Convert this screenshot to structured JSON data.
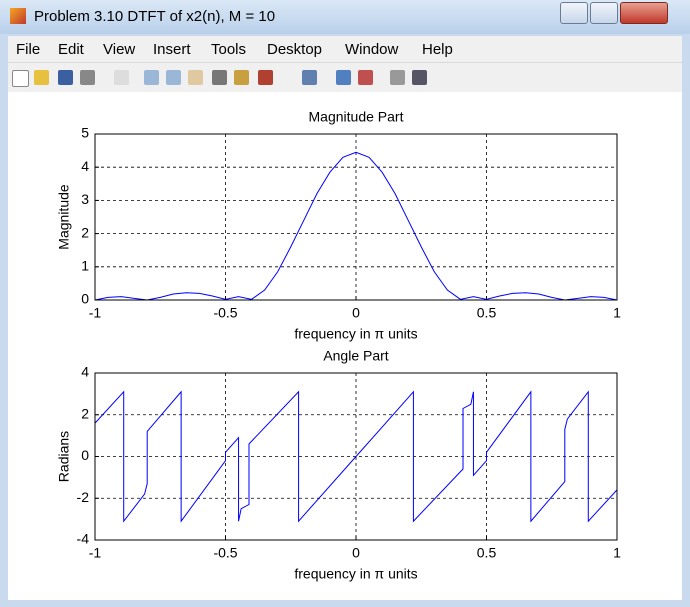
{
  "window": {
    "title": "Problem 3.10 DTFT of x2(n), M = 10"
  },
  "menu": [
    "File",
    "Edit",
    "View",
    "Insert",
    "Tools",
    "Desktop",
    "Window",
    "Help"
  ],
  "chart_data": [
    {
      "type": "line",
      "title": "Magnitude Part",
      "x_label": "frequency in π units",
      "y_label": "Magnitude",
      "x": [
        -1,
        -0.95,
        -0.9,
        -0.85,
        -0.8,
        -0.75,
        -0.7,
        -0.65,
        -0.6,
        -0.55,
        -0.5,
        -0.45,
        -0.4,
        -0.35,
        -0.3,
        -0.25,
        -0.2,
        -0.15,
        -0.1,
        -0.05,
        0,
        0.05,
        0.1,
        0.15,
        0.2,
        0.25,
        0.3,
        0.35,
        0.4,
        0.45,
        0.5,
        0.55,
        0.6,
        0.65,
        0.7,
        0.75,
        0.8,
        0.85,
        0.9,
        0.95,
        1
      ],
      "values": [
        0,
        0.08,
        0.1,
        0.05,
        0,
        0.08,
        0.18,
        0.22,
        0.2,
        0.12,
        0.02,
        0.1,
        0.02,
        0.3,
        0.85,
        1.6,
        2.4,
        3.2,
        3.85,
        4.3,
        4.45,
        4.3,
        3.85,
        3.2,
        2.4,
        1.6,
        0.85,
        0.3,
        0.02,
        0.1,
        0.02,
        0.12,
        0.2,
        0.22,
        0.18,
        0.08,
        0,
        0.05,
        0.1,
        0.08,
        0
      ],
      "color": "#0000ff",
      "xlim": [
        -1,
        1
      ],
      "ylim": [
        0,
        5
      ],
      "xticks": [
        -1,
        -0.5,
        0,
        0.5,
        1
      ],
      "yticks": [
        0,
        1,
        2,
        3,
        4,
        5
      ],
      "grid": true
    },
    {
      "type": "line",
      "title": "Angle Part",
      "x_label": "frequency in π units",
      "y_label": "Radians",
      "x": [
        -1,
        -0.89,
        -0.89,
        -0.81,
        -0.8,
        -0.8,
        -0.67,
        -0.67,
        -0.5,
        -0.5,
        -0.45,
        -0.45,
        -0.44,
        -0.41,
        -0.41,
        -0.22,
        -0.22,
        0,
        0.22,
        0.22,
        0.41,
        0.41,
        0.44,
        0.45,
        0.45,
        0.5,
        0.5,
        0.67,
        0.67,
        0.8,
        0.8,
        0.81,
        0.89,
        0.89,
        1
      ],
      "values": [
        1.6,
        3.1,
        -3.1,
        -1.8,
        -1.3,
        1.2,
        3.1,
        -3.1,
        -0.2,
        0.2,
        0.9,
        -3.1,
        -2.5,
        -2.3,
        0.6,
        3.1,
        -3.1,
        0,
        3.1,
        -3.1,
        -0.6,
        2.3,
        2.5,
        3.1,
        -0.9,
        -0.2,
        0.2,
        3.1,
        -3.1,
        -1.2,
        1.3,
        1.8,
        3.1,
        -3.1,
        -1.6
      ],
      "color": "#0000ff",
      "xlim": [
        -1,
        1
      ],
      "ylim": [
        -4,
        4
      ],
      "xticks": [
        -1,
        -0.5,
        0,
        0.5,
        1
      ],
      "yticks": [
        -4,
        -2,
        0,
        2,
        4
      ],
      "grid": true
    }
  ]
}
